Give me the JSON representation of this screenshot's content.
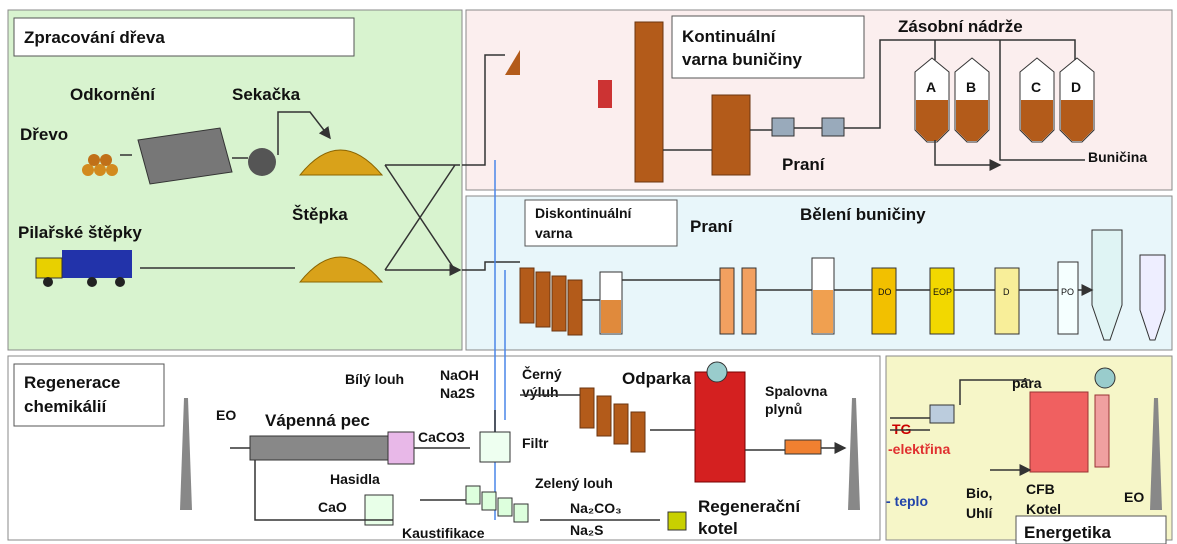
{
  "wood": {
    "title": "Zpracování dřeva",
    "debarking": "Odkornění",
    "chipper": "Sekačka",
    "wood": "Dřevo",
    "chips": "Štěpka",
    "sawmill_chips": "Pilařské štěpky"
  },
  "continuous": {
    "title": [
      "Kontinuální",
      "varna buničiny"
    ],
    "storage": "Zásobní nádrže",
    "tanks": [
      "A",
      "B",
      "C",
      "D"
    ],
    "washing": "Praní",
    "pulp": "Buničina"
  },
  "batch": {
    "title": [
      "Diskontinuální",
      "varna"
    ],
    "washing": "Praní",
    "bleaching": "Bělení buničiny",
    "stages": [
      "DO",
      "EOP",
      "D",
      "PO"
    ]
  },
  "recovery": {
    "title": [
      "Regenerace",
      "chemikálií"
    ],
    "eo": "EO",
    "kiln": "Vápenná pec",
    "white_liquor": "Bílý louh",
    "naoh": "NaOH",
    "na2s_top": "Na2S",
    "caco3": "CaCO3",
    "filter": "Filtr",
    "slaker": "Hasidla",
    "cao": "CaO",
    "causticizing": "Kaustifikace",
    "green_liquor": "Zelený louh",
    "na2co3": "Na₂CO₃",
    "na2s": "Na₂S",
    "black_liquor": [
      "Černý",
      "výluh"
    ],
    "evaporator": "Odparka",
    "incinerator": [
      "Spalovna",
      "plynů"
    ],
    "recovery_boiler": [
      "Regenerační",
      "kotel"
    ]
  },
  "energy": {
    "tg": "TG",
    "electricity": "-elektřina",
    "steam": "pára",
    "heat": "- teplo",
    "fuel": [
      "Bio,",
      "Uhlí"
    ],
    "cfb": [
      "CFB",
      "Kotel"
    ],
    "eo": "EO",
    "title": "Energetika"
  }
}
